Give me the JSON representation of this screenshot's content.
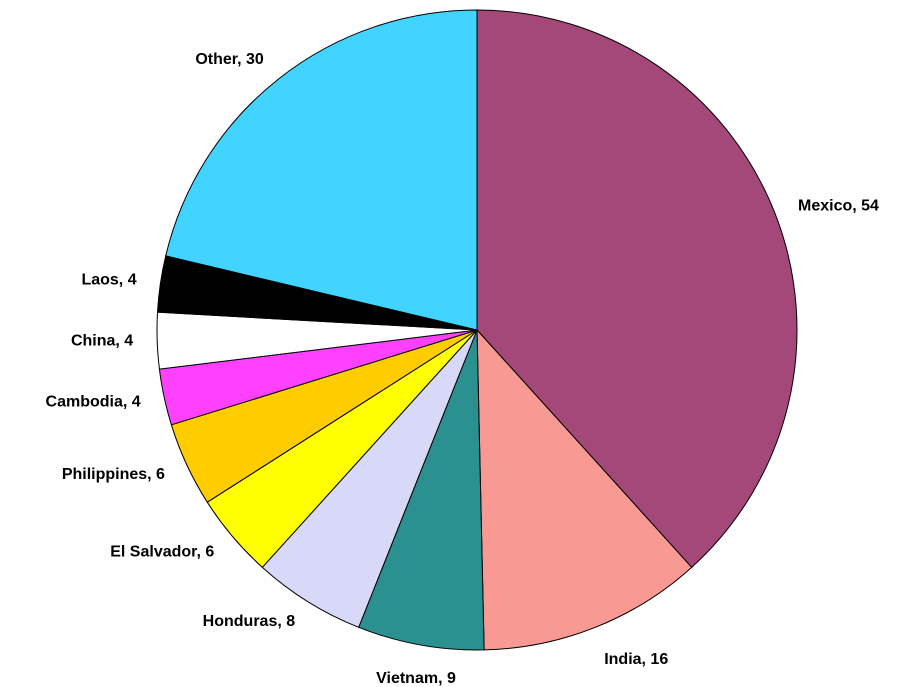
{
  "chart_data": {
    "type": "pie",
    "values": [
      54,
      16,
      9,
      8,
      6,
      6,
      4,
      4,
      4,
      30
    ],
    "value_labels": [
      "Mexico, 54",
      "India, 16",
      "Vietnam, 9",
      "Honduras, 8",
      "El Salvador, 6",
      "Philippines, 6",
      "Cambodia, 4",
      "China, 4",
      "Laos, 4",
      "Other, 30"
    ],
    "colors": [
      "#a34878",
      "#f89a93",
      "#2a9090",
      "#d8d8f8",
      "#ffff00",
      "#ffcc00",
      "#ff40ff",
      "#ffffff",
      "#000000",
      "#40d4ff"
    ],
    "start_angle": 0,
    "direction": "clockwise"
  }
}
